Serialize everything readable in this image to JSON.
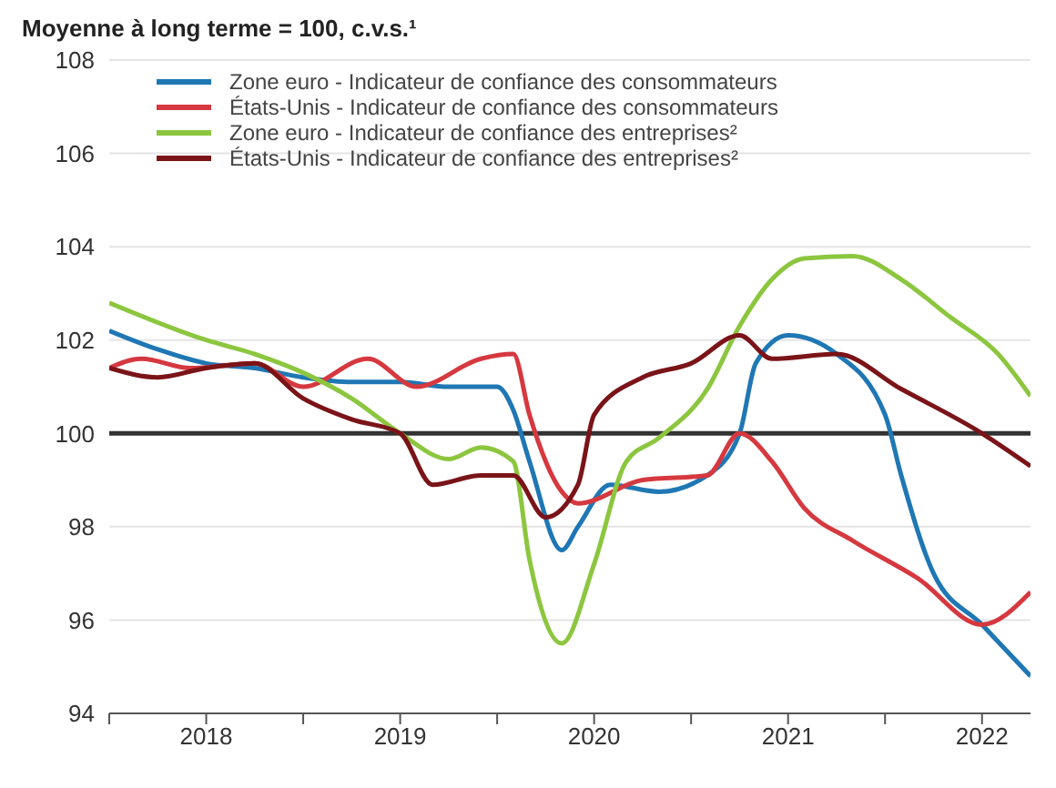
{
  "chart_data": {
    "type": "line",
    "title": "Moyenne à long terme = 100, c.v.s.¹",
    "series": [
      {
        "name": "Zone euro - Indicateur de confiance des consommateurs",
        "color": "#1f77b4",
        "x": [
          "2018-01",
          "2018-04",
          "2018-07",
          "2018-10",
          "2019-01",
          "2019-04",
          "2019-07",
          "2019-10",
          "2020-01",
          "2020-02",
          "2020-03",
          "2020-05",
          "2020-06",
          "2020-08",
          "2020-11",
          "2021-02",
          "2021-04",
          "2021-05",
          "2021-07",
          "2021-10",
          "2022-01",
          "2022-02",
          "2022-04",
          "2022-07",
          "2022-10"
        ],
        "values": [
          102.2,
          101.8,
          101.5,
          101.4,
          101.2,
          101.1,
          101.1,
          101.0,
          101.0,
          100.5,
          99.4,
          97.5,
          98.0,
          98.9,
          98.75,
          99.1,
          100.0,
          101.5,
          102.1,
          101.7,
          100.4,
          99.1,
          97.0,
          95.9,
          94.8
        ]
      },
      {
        "name": "États-Unis - Indicateur de confiance des consommateurs",
        "color": "#d6383f",
        "x": [
          "2018-01",
          "2018-03",
          "2018-06",
          "2018-10",
          "2019-01",
          "2019-05",
          "2019-08",
          "2019-12",
          "2020-02",
          "2020-03",
          "2020-05",
          "2020-06",
          "2020-10",
          "2021-02",
          "2021-04",
          "2021-06",
          "2021-08",
          "2021-11",
          "2022-03",
          "2022-07",
          "2022-10"
        ],
        "values": [
          101.4,
          101.6,
          101.4,
          101.5,
          101.0,
          101.6,
          101.0,
          101.6,
          101.7,
          100.4,
          98.75,
          98.5,
          99.0,
          99.1,
          100.0,
          99.4,
          98.4,
          97.7,
          96.9,
          95.9,
          96.6
        ]
      },
      {
        "name": "Zone euro - Indicateur de confiance des entreprises²",
        "color": "#8cc63f",
        "x": [
          "2018-01",
          "2018-07",
          "2018-10",
          "2019-01",
          "2019-04",
          "2019-07",
          "2019-10",
          "2019-12",
          "2020-02",
          "2020-03",
          "2020-05",
          "2020-07",
          "2020-09",
          "2020-11",
          "2021-02",
          "2021-04",
          "2021-06",
          "2021-08",
          "2021-11",
          "2022-02",
          "2022-05",
          "2022-08",
          "2022-10"
        ],
        "values": [
          102.8,
          102.0,
          101.7,
          101.3,
          100.75,
          100.0,
          99.45,
          99.7,
          99.4,
          97.3,
          95.5,
          97.2,
          99.4,
          99.9,
          100.95,
          102.3,
          103.3,
          103.75,
          103.8,
          103.3,
          102.5,
          101.7,
          100.8
        ]
      },
      {
        "name": "États-Unis - Indicateur de confiance des entreprises²",
        "color": "#7a1418",
        "x": [
          "2018-01",
          "2018-04",
          "2018-07",
          "2018-10",
          "2019-01",
          "2019-04",
          "2019-07",
          "2019-09",
          "2019-12",
          "2020-02",
          "2020-04",
          "2020-06",
          "2020-07",
          "2020-10",
          "2021-01",
          "2021-04",
          "2021-06",
          "2021-10",
          "2022-02",
          "2022-07",
          "2022-10"
        ],
        "values": [
          101.4,
          101.2,
          101.4,
          101.5,
          100.75,
          100.3,
          100.0,
          98.9,
          99.1,
          99.1,
          98.2,
          98.9,
          100.4,
          101.2,
          101.5,
          102.1,
          101.6,
          101.7,
          100.95,
          100.0,
          99.3
        ]
      }
    ],
    "xlim": [
      "2018-01",
      "2022-10"
    ],
    "xticks": [
      {
        "value": "2018-01",
        "label": null
      },
      {
        "value": "2018-07",
        "label": "2018"
      },
      {
        "value": "2019-01",
        "label": null
      },
      {
        "value": "2019-07",
        "label": "2019"
      },
      {
        "value": "2020-01",
        "label": null
      },
      {
        "value": "2020-07",
        "label": "2020"
      },
      {
        "value": "2021-01",
        "label": null
      },
      {
        "value": "2021-07",
        "label": "2021"
      },
      {
        "value": "2022-01",
        "label": null
      },
      {
        "value": "2022-07",
        "label": "2022"
      }
    ],
    "ylim": [
      94,
      108
    ],
    "yticks": [
      94,
      96,
      98,
      100,
      102,
      104,
      106,
      108
    ],
    "ref_lines": [
      {
        "axis": "y",
        "value": 100,
        "color": "#333333"
      }
    ],
    "grid": "y",
    "legend": "top left",
    "line_style": "solid",
    "marker": "none"
  }
}
